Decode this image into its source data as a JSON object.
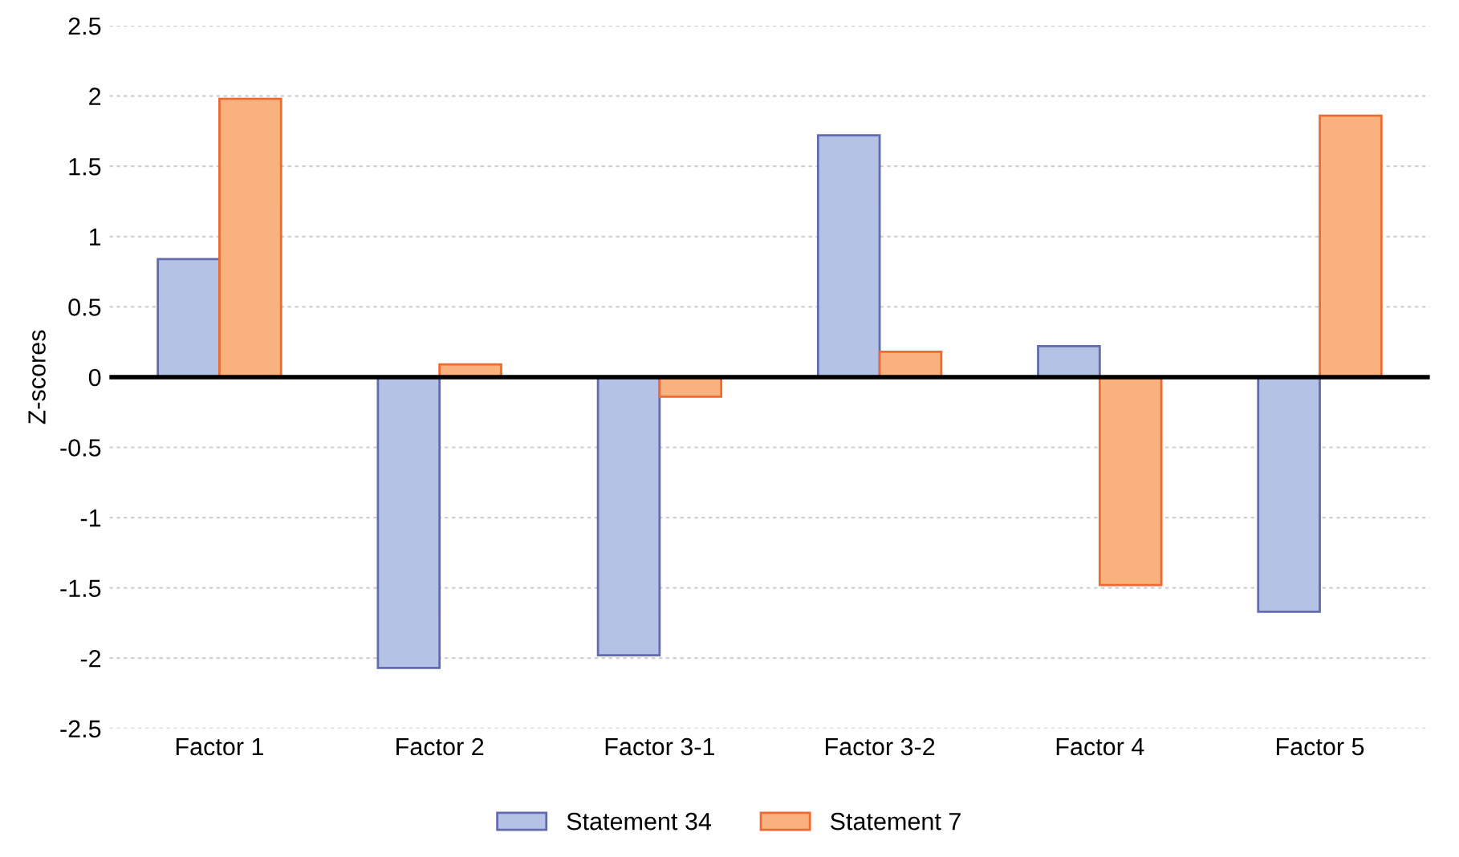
{
  "chart_data": {
    "type": "bar",
    "ylabel": "Z-scores",
    "categories": [
      "Factor 1",
      "Factor 2",
      "Factor 3-1",
      "Factor 3-2",
      "Factor 4",
      "Factor 5"
    ],
    "series": [
      {
        "name": "Statement 34",
        "color": "#b4c2e6",
        "values": [
          0.84,
          -2.07,
          -1.98,
          1.72,
          0.22,
          -1.67
        ]
      },
      {
        "name": "Statement 7",
        "color": "#f9b27d",
        "values": [
          1.98,
          0.09,
          -0.14,
          0.18,
          -1.48,
          1.86
        ]
      }
    ],
    "ylim": [
      -2.5,
      2.5
    ],
    "yticks": [
      -2.5,
      -2,
      -1.5,
      -1,
      -0.5,
      0,
      0.5,
      1,
      1.5,
      2,
      2.5
    ],
    "grid": "y",
    "legend": "bottom"
  }
}
